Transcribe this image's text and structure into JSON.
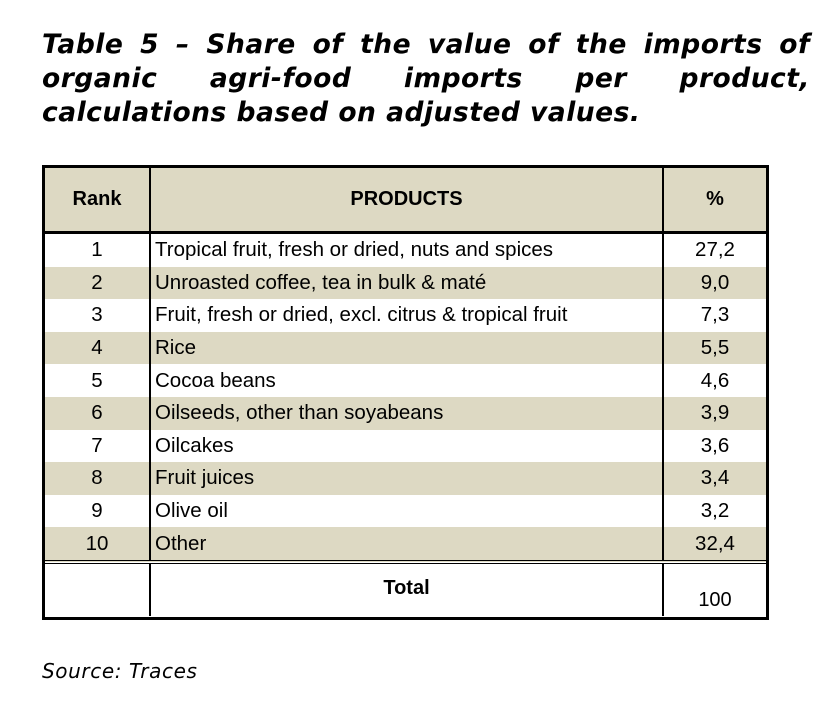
{
  "title": "Table 5 – Share of the value of the imports of organic agri-food imports per product, calculations based on adjusted values.",
  "table": {
    "headers": {
      "rank": "Rank",
      "products": "PRODUCTS",
      "percent": "%"
    },
    "rows": [
      {
        "rank": "1",
        "product": "Tropical fruit, fresh or dried, nuts and spices",
        "percent": "27,2"
      },
      {
        "rank": "2",
        "product": "Unroasted coffee, tea in bulk & maté",
        "percent": "9,0"
      },
      {
        "rank": "3",
        "product": "Fruit, fresh or dried, excl. citrus & tropical fruit",
        "percent": "7,3"
      },
      {
        "rank": "4",
        "product": "Rice",
        "percent": "5,5"
      },
      {
        "rank": "5",
        "product": "Cocoa beans",
        "percent": "4,6"
      },
      {
        "rank": "6",
        "product": "Oilseeds, other than soyabeans",
        "percent": "3,9"
      },
      {
        "rank": "7",
        "product": "Oilcakes",
        "percent": "3,6"
      },
      {
        "rank": "8",
        "product": "Fruit juices",
        "percent": "3,4"
      },
      {
        "rank": "9",
        "product": "Olive oil",
        "percent": "3,2"
      },
      {
        "rank": "10",
        "product": "Other",
        "percent": "32,4"
      }
    ],
    "total": {
      "label": "Total",
      "value": "100"
    }
  },
  "source": "Source: Traces",
  "colors": {
    "header_shade": "#ddd9c3",
    "row_shade": "#ddd9c3",
    "border": "#000000"
  }
}
